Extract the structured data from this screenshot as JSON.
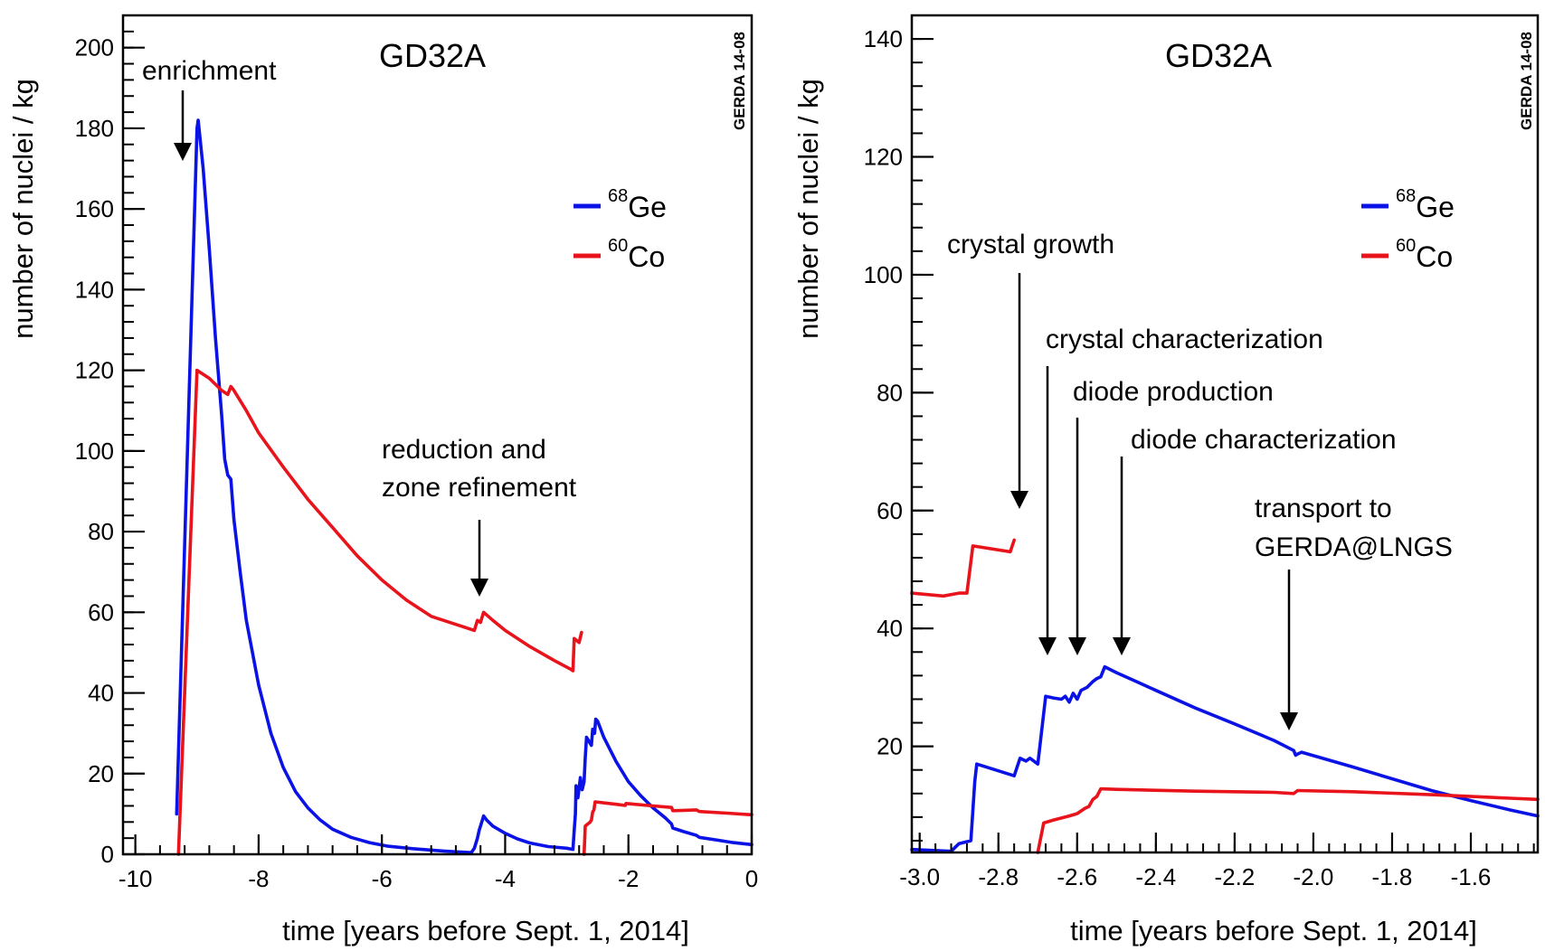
{
  "chart_data": [
    {
      "type": "line",
      "title": "GD32A",
      "stamp": "GERDA 14-08",
      "xlabel": "time  [years before Sept. 1, 2014]",
      "ylabel": "number of nuclei / kg",
      "xlim": [
        -10.2,
        0
      ],
      "ylim": [
        0,
        208
      ],
      "xticks": [
        -10,
        -8,
        -6,
        -4,
        -2,
        0
      ],
      "xtick_labels": [
        "-10",
        "-8",
        "-6",
        "-4",
        "-2",
        "0"
      ],
      "xminor": 0.4,
      "yticks": [
        0,
        20,
        40,
        60,
        80,
        100,
        120,
        140,
        160,
        180,
        200
      ],
      "ytick_labels": [
        "0",
        "20",
        "40",
        "60",
        "80",
        "100",
        "120",
        "140",
        "160",
        "180",
        "200"
      ],
      "yminor": 4,
      "legend": [
        {
          "sup": "68",
          "name": "Ge",
          "color": "#0a12e6"
        },
        {
          "sup": "60",
          "name": "Co",
          "color": "#e8131b"
        }
      ],
      "annotations": [
        {
          "lines": [
            "enrichment"
          ]
        },
        {
          "lines": [
            "reduction and",
            "zone refinement"
          ]
        }
      ],
      "series": [
        {
          "name": "68Ge",
          "color": "#0a12e6",
          "points": [
            [
              -9.33,
              10
            ],
            [
              -9.0,
              180
            ],
            [
              -8.98,
              182
            ],
            [
              -8.9,
              170
            ],
            [
              -8.8,
              150
            ],
            [
              -8.7,
              128
            ],
            [
              -8.6,
              109
            ],
            [
              -8.55,
              98
            ],
            [
              -8.5,
              94
            ],
            [
              -8.45,
              93
            ],
            [
              -8.4,
              83
            ],
            [
              -8.3,
              70
            ],
            [
              -8.2,
              58
            ],
            [
              -8.0,
              42
            ],
            [
              -7.8,
              30
            ],
            [
              -7.6,
              21.5
            ],
            [
              -7.4,
              15.5
            ],
            [
              -7.2,
              11.5
            ],
            [
              -7.0,
              8.5
            ],
            [
              -6.8,
              6.2
            ],
            [
              -6.5,
              4.2
            ],
            [
              -6.2,
              2.9
            ],
            [
              -5.9,
              2.0
            ],
            [
              -5.5,
              1.4
            ],
            [
              -5.0,
              0.8
            ],
            [
              -4.55,
              0.4
            ],
            [
              -4.5,
              1.5
            ],
            [
              -4.45,
              4
            ],
            [
              -4.42,
              6
            ],
            [
              -4.38,
              8
            ],
            [
              -4.35,
              9.5
            ],
            [
              -4.3,
              8.5
            ],
            [
              -4.2,
              7
            ],
            [
              -4.0,
              5.2
            ],
            [
              -3.8,
              3.8
            ],
            [
              -3.6,
              2.8
            ],
            [
              -3.3,
              1.9
            ],
            [
              -3.0,
              1.5
            ],
            [
              -2.9,
              1.2
            ],
            [
              -2.88,
              6
            ],
            [
              -2.86,
              10
            ],
            [
              -2.85,
              17
            ],
            [
              -2.82,
              14
            ],
            [
              -2.78,
              19
            ],
            [
              -2.75,
              16
            ],
            [
              -2.72,
              18
            ],
            [
              -2.7,
              24
            ],
            [
              -2.68,
              29
            ],
            [
              -2.64,
              28
            ],
            [
              -2.6,
              27
            ],
            [
              -2.58,
              31
            ],
            [
              -2.55,
              30
            ],
            [
              -2.53,
              33.5
            ],
            [
              -2.5,
              33
            ],
            [
              -2.4,
              29
            ],
            [
              -2.2,
              23
            ],
            [
              -2.0,
              18
            ],
            [
              -1.8,
              14.5
            ],
            [
              -1.6,
              11.5
            ],
            [
              -1.4,
              9
            ],
            [
              -1.3,
              7.5
            ],
            [
              -1.28,
              6.5
            ],
            [
              -1.1,
              5.6
            ],
            [
              -0.9,
              4.7
            ],
            [
              -0.85,
              4.2
            ],
            [
              -0.6,
              3.6
            ],
            [
              -0.3,
              2.9
            ],
            [
              0,
              2.4
            ]
          ]
        },
        {
          "name": "60Co",
          "color": "#e8131b",
          "points": [
            [
              -9.3,
              0
            ],
            [
              -9.0,
              120
            ],
            [
              -8.8,
              118
            ],
            [
              -8.6,
              115
            ],
            [
              -8.5,
              114
            ],
            [
              -8.45,
              116
            ],
            [
              -8.4,
              115
            ],
            [
              -8.2,
              110
            ],
            [
              -8.0,
              104.5
            ],
            [
              -7.6,
              96
            ],
            [
              -7.2,
              88
            ],
            [
              -6.8,
              81
            ],
            [
              -6.4,
              74
            ],
            [
              -6.0,
              68
            ],
            [
              -5.6,
              63
            ],
            [
              -5.2,
              59
            ],
            [
              -4.8,
              57
            ],
            [
              -4.5,
              55.5
            ],
            [
              -4.45,
              58
            ],
            [
              -4.4,
              57.5
            ],
            [
              -4.35,
              60
            ],
            [
              -4.2,
              58
            ],
            [
              -4.0,
              55.5
            ],
            [
              -3.6,
              51.5
            ],
            [
              -3.2,
              48
            ],
            [
              -2.95,
              46
            ],
            [
              -2.9,
              45.5
            ],
            [
              -2.88,
              53.5
            ],
            [
              -2.84,
              53
            ],
            [
              -2.8,
              52.5
            ],
            [
              -2.76,
              55
            ],
            null,
            [
              -2.72,
              0
            ],
            [
              -2.7,
              7
            ],
            [
              -2.66,
              7.5
            ],
            [
              -2.62,
              8
            ],
            [
              -2.6,
              8.5
            ],
            [
              -2.58,
              10.5
            ],
            [
              -2.56,
              11
            ],
            [
              -2.54,
              13
            ],
            [
              -2.2,
              12.4
            ],
            [
              -2.05,
              12.1
            ],
            [
              -2.04,
              12.6
            ],
            [
              -1.6,
              12.0
            ],
            [
              -1.3,
              11.6
            ],
            [
              -1.28,
              10.8
            ],
            [
              -1.1,
              10.9
            ],
            [
              -0.9,
              11.0
            ],
            [
              -0.85,
              10.6
            ],
            [
              -0.4,
              10.2
            ],
            [
              0,
              9.8
            ]
          ]
        }
      ]
    },
    {
      "type": "line",
      "title": "GD32A",
      "stamp": "GERDA 14-08",
      "xlabel": "time  [years before Sept. 1, 2014]",
      "ylabel": "number of nuclei / kg",
      "xlim": [
        -3.02,
        -1.43
      ],
      "ylim": [
        2,
        144
      ],
      "xticks": [
        -3.0,
        -2.8,
        -2.6,
        -2.4,
        -2.2,
        -2.0,
        -1.8,
        -1.6
      ],
      "xtick_labels": [
        "-3.0",
        "-2.8",
        "-2.6",
        "-2.4",
        "-2.2",
        "-2.0",
        "-1.8",
        "-1.6"
      ],
      "xminor": 0.04,
      "yticks": [
        20,
        40,
        60,
        80,
        100,
        120,
        140
      ],
      "ytick_labels": [
        "20",
        "40",
        "60",
        "80",
        "100",
        "120",
        "140"
      ],
      "yminor": 4,
      "legend": [
        {
          "sup": "68",
          "name": "Ge",
          "color": "#0a12e6"
        },
        {
          "sup": "60",
          "name": "Co",
          "color": "#e8131b"
        }
      ],
      "annotations": [
        {
          "lines": [
            "crystal growth"
          ]
        },
        {
          "lines": [
            "crystal characterization"
          ]
        },
        {
          "lines": [
            "diode production"
          ]
        },
        {
          "lines": [
            "diode characterization"
          ]
        },
        {
          "lines": [
            "transport to",
            "GERDA@LNGS"
          ]
        }
      ],
      "series": [
        {
          "name": "68Ge",
          "color": "#0a12e6",
          "points": [
            [
              -3.02,
              2.5
            ],
            [
              -2.92,
              2.2
            ],
            [
              -2.9,
              3.5
            ],
            [
              -2.87,
              4.0
            ],
            [
              -2.86,
              14
            ],
            [
              -2.855,
              17
            ],
            [
              -2.76,
              15
            ],
            [
              -2.745,
              18
            ],
            [
              -2.73,
              17.5
            ],
            [
              -2.72,
              18
            ],
            [
              -2.7,
              17
            ],
            [
              -2.68,
              28.5
            ],
            [
              -2.66,
              28.2
            ],
            [
              -2.64,
              28
            ],
            [
              -2.63,
              28.5
            ],
            [
              -2.62,
              27.5
            ],
            [
              -2.61,
              29
            ],
            [
              -2.6,
              28
            ],
            [
              -2.59,
              29.5
            ],
            [
              -2.575,
              30
            ],
            [
              -2.56,
              31
            ],
            [
              -2.55,
              31.5
            ],
            [
              -2.54,
              31.8
            ],
            [
              -2.53,
              33.5
            ],
            [
              -2.5,
              32.5
            ],
            [
              -2.45,
              31
            ],
            [
              -2.4,
              29.5
            ],
            [
              -2.3,
              26.5
            ],
            [
              -2.2,
              23.8
            ],
            [
              -2.1,
              21
            ],
            [
              -2.05,
              19.3
            ],
            [
              -2.045,
              18.5
            ],
            [
              -2.04,
              18.7
            ],
            [
              -2.03,
              19.0
            ],
            [
              -1.9,
              16.5
            ],
            [
              -1.8,
              14.5
            ],
            [
              -1.7,
              12.5
            ],
            [
              -1.6,
              10.8
            ],
            [
              -1.5,
              9.2
            ],
            [
              -1.43,
              8.2
            ]
          ]
        },
        {
          "name": "60Co",
          "color": "#e8131b",
          "points": [
            [
              -3.02,
              46
            ],
            [
              -2.94,
              45.5
            ],
            [
              -2.9,
              46
            ],
            [
              -2.88,
              46
            ],
            [
              -2.865,
              54
            ],
            [
              -2.77,
              53
            ],
            [
              -2.76,
              55
            ],
            null,
            [
              -2.7,
              2.0
            ],
            [
              -2.685,
              7.0
            ],
            [
              -2.66,
              7.5
            ],
            [
              -2.62,
              8.2
            ],
            [
              -2.6,
              8.6
            ],
            [
              -2.58,
              9.5
            ],
            [
              -2.57,
              9.8
            ],
            [
              -2.56,
              11
            ],
            [
              -2.55,
              11.5
            ],
            [
              -2.54,
              12.8
            ],
            [
              -2.5,
              12.7
            ],
            [
              -2.3,
              12.4
            ],
            [
              -2.1,
              12.2
            ],
            [
              -2.05,
              12.0
            ],
            [
              -2.04,
              12.5
            ],
            [
              -1.9,
              12.3
            ],
            [
              -1.7,
              11.8
            ],
            [
              -1.5,
              11.2
            ],
            [
              -1.43,
              11.0
            ]
          ]
        }
      ]
    }
  ]
}
